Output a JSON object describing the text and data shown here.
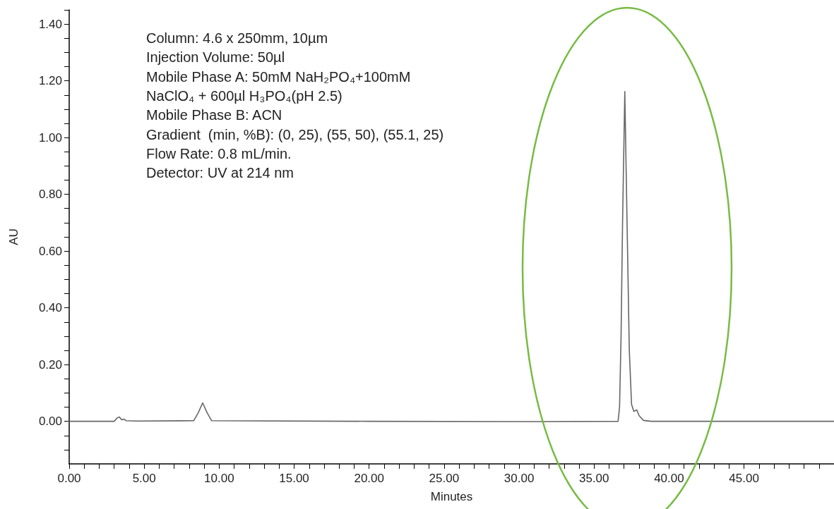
{
  "chart_data": {
    "type": "line",
    "xlabel": "Minutes",
    "ylabel": "AU",
    "annotations": [
      "Column: 4.6 x 250mm, 10µm",
      "Injection Volume: 50µl",
      "Mobile Phase A: 50mM NaH₂PO₄+100mM",
      "NaClO₄ + 600µl H₃PO₄(pH 2.5)",
      "Mobile Phase B: ACN",
      "Gradient  (min, %B): (0, 25), (55, 50), (55.1, 25)",
      "Flow Rate: 0.8 mL/min.",
      "Detector: UV at 214 nm"
    ],
    "series": [
      {
        "color": "#666666",
        "x": [
          0,
          3.0,
          3.2,
          3.35,
          3.5,
          3.65,
          3.8,
          4.5,
          8.3,
          8.6,
          8.9,
          9.2,
          9.5,
          20,
          30,
          36.6,
          36.7,
          36.8,
          36.9,
          37.05,
          37.2,
          37.35,
          37.5,
          37.65,
          37.85,
          38.0,
          38.3,
          38.8,
          41,
          51
        ],
        "values": [
          0,
          0,
          0.012,
          0.015,
          0.005,
          0.008,
          0.002,
          0.001,
          0.002,
          0.03,
          0.065,
          0.03,
          0.002,
          0,
          -0.001,
          0,
          0.05,
          0.3,
          0.7,
          1.162,
          0.7,
          0.25,
          0.06,
          0.035,
          0.04,
          0.02,
          0.003,
          0,
          0,
          0
        ]
      }
    ],
    "xlim": [
      0,
      51
    ],
    "ylim": [
      -0.15,
      1.45
    ],
    "xticks": [
      {
        "value": 0,
        "label": "0.00"
      },
      {
        "value": 1,
        "label": null
      },
      {
        "value": 2,
        "label": null
      },
      {
        "value": 3,
        "label": null
      },
      {
        "value": 4,
        "label": null
      },
      {
        "value": 5,
        "label": "5.00"
      },
      {
        "value": 6,
        "label": null
      },
      {
        "value": 7,
        "label": null
      },
      {
        "value": 8,
        "label": null
      },
      {
        "value": 9,
        "label": null
      },
      {
        "value": 10,
        "label": "10.00"
      },
      {
        "value": 11,
        "label": null
      },
      {
        "value": 12,
        "label": null
      },
      {
        "value": 13,
        "label": null
      },
      {
        "value": 14,
        "label": null
      },
      {
        "value": 15,
        "label": "15.00"
      },
      {
        "value": 16,
        "label": null
      },
      {
        "value": 17,
        "label": null
      },
      {
        "value": 18,
        "label": null
      },
      {
        "value": 19,
        "label": null
      },
      {
        "value": 20,
        "label": "20.00"
      },
      {
        "value": 21,
        "label": null
      },
      {
        "value": 22,
        "label": null
      },
      {
        "value": 23,
        "label": null
      },
      {
        "value": 24,
        "label": null
      },
      {
        "value": 25,
        "label": "25.00"
      },
      {
        "value": 26,
        "label": null
      },
      {
        "value": 27,
        "label": null
      },
      {
        "value": 28,
        "label": null
      },
      {
        "value": 29,
        "label": null
      },
      {
        "value": 30,
        "label": "30.00"
      },
      {
        "value": 31,
        "label": null
      },
      {
        "value": 32,
        "label": null
      },
      {
        "value": 33,
        "label": null
      },
      {
        "value": 34,
        "label": null
      },
      {
        "value": 35,
        "label": "35.00"
      },
      {
        "value": 36,
        "label": null
      },
      {
        "value": 37,
        "label": null
      },
      {
        "value": 38,
        "label": null
      },
      {
        "value": 39,
        "label": null
      },
      {
        "value": 40,
        "label": "40.00"
      },
      {
        "value": 41,
        "label": null
      },
      {
        "value": 42,
        "label": null
      },
      {
        "value": 43,
        "label": null
      },
      {
        "value": 44,
        "label": null
      },
      {
        "value": 45,
        "label": "45.00"
      },
      {
        "value": 46,
        "label": null
      },
      {
        "value": 47,
        "label": null
      },
      {
        "value": 48,
        "label": null
      },
      {
        "value": 49,
        "label": null
      },
      {
        "value": 50,
        "label": null
      }
    ],
    "yticks": [
      {
        "value": -0.1,
        "label": null
      },
      {
        "value": -0.05,
        "label": null
      },
      {
        "value": 0,
        "label": "0.00"
      },
      {
        "value": 0.05,
        "label": null
      },
      {
        "value": 0.1,
        "label": null
      },
      {
        "value": 0.15,
        "label": null
      },
      {
        "value": 0.2,
        "label": "0.20"
      },
      {
        "value": 0.25,
        "label": null
      },
      {
        "value": 0.3,
        "label": null
      },
      {
        "value": 0.35,
        "label": null
      },
      {
        "value": 0.4,
        "label": "0.40"
      },
      {
        "value": 0.45,
        "label": null
      },
      {
        "value": 0.5,
        "label": null
      },
      {
        "value": 0.55,
        "label": null
      },
      {
        "value": 0.6,
        "label": "0.60"
      },
      {
        "value": 0.65,
        "label": null
      },
      {
        "value": 0.7,
        "label": null
      },
      {
        "value": 0.75,
        "label": null
      },
      {
        "value": 0.8,
        "label": "0.80"
      },
      {
        "value": 0.85,
        "label": null
      },
      {
        "value": 0.9,
        "label": null
      },
      {
        "value": 0.95,
        "label": null
      },
      {
        "value": 1.0,
        "label": "1.00"
      },
      {
        "value": 1.05,
        "label": null
      },
      {
        "value": 1.1,
        "label": null
      },
      {
        "value": 1.15,
        "label": null
      },
      {
        "value": 1.2,
        "label": "1.20"
      },
      {
        "value": 1.25,
        "label": null
      },
      {
        "value": 1.3,
        "label": null
      },
      {
        "value": 1.35,
        "label": null
      },
      {
        "value": 1.4,
        "label": "1.40"
      },
      {
        "value": 1.45,
        "label": null
      }
    ],
    "grid": false,
    "marker": "none",
    "line_style": "solid"
  }
}
